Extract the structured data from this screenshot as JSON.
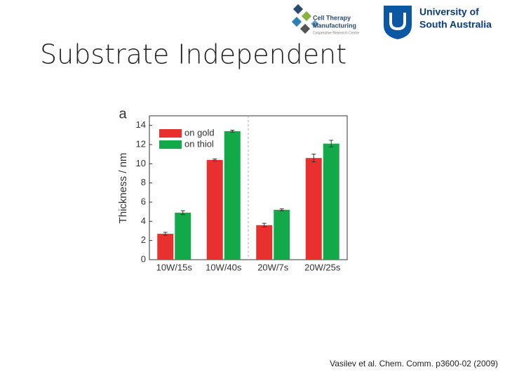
{
  "slide": {
    "title": "Substrate Independent",
    "logo_left": {
      "line1": "Cell Therapy",
      "line2": "Manufacturing",
      "line3": "Cooperative Research Centre"
    },
    "logo_right": {
      "line1": "University of",
      "line2": "South Australia"
    },
    "citation": "Vasilev et al. Chem. Comm. p3600-02 (2009)"
  },
  "chart_data": {
    "type": "bar",
    "panel_label": "a",
    "y_label": "Thickness / nm",
    "categories": [
      "10W/15s",
      "10W/40s",
      "20W/7s",
      "20W/25s"
    ],
    "series": [
      {
        "name": "on gold",
        "color": "#e8312f",
        "values": [
          2.7,
          10.4,
          3.6,
          10.6
        ],
        "errors": [
          0.15,
          0.1,
          0.2,
          0.4
        ]
      },
      {
        "name": "on thiol",
        "color": "#12a94a",
        "values": [
          4.9,
          13.4,
          5.2,
          12.1
        ],
        "errors": [
          0.2,
          0.1,
          0.1,
          0.35
        ]
      }
    ],
    "ylim": [
      0,
      15
    ],
    "yticks": [
      0,
      2,
      4,
      6,
      8,
      10,
      12,
      14
    ],
    "legend": "upper-left"
  }
}
